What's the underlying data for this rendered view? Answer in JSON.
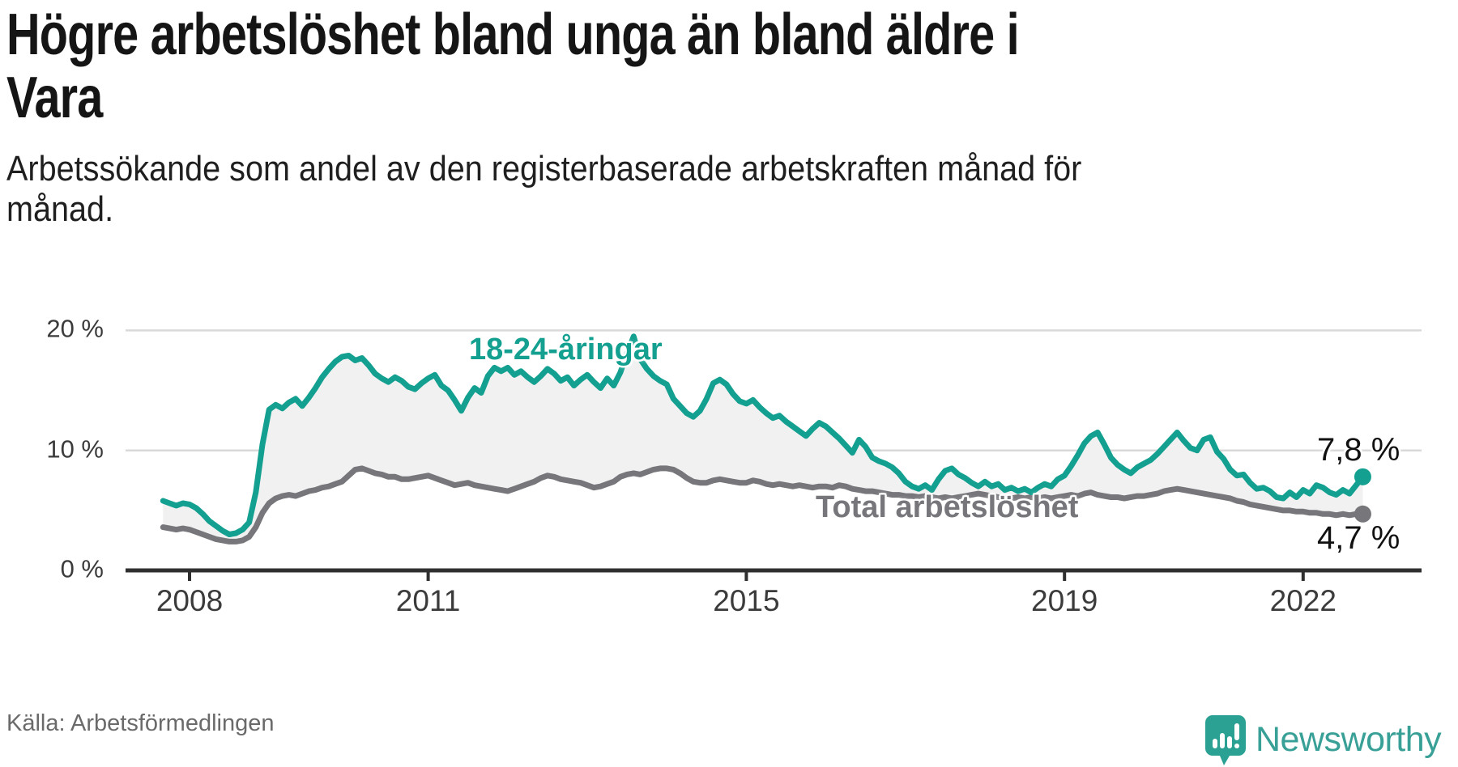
{
  "header": {
    "title_lines": [
      "Högre arbetslöshet bland unga än bland äldre i",
      "Vara"
    ],
    "subtitle_lines": [
      "Arbetssökande som andel av den registerbaserade arbetskraften månad för",
      "månad."
    ]
  },
  "footer": {
    "source": "Källa: Arbetsförmedlingen",
    "logo_text": "Newsworthy"
  },
  "chart_data": {
    "type": "line",
    "title": "Högre arbetslöshet bland unga än bland äldre i Vara",
    "subtitle": "Arbetssökande som andel av den registerbaserade arbetskraften månad för månad.",
    "unit": "%",
    "frequency": "monthly",
    "start_year": 2007,
    "start_month": 9,
    "end_year": 2022,
    "end_month": 10,
    "ylim": [
      0,
      22.3
    ],
    "grid": true,
    "legend_position": "inline-labels",
    "fill_between_color": "#f1f1f2",
    "axis_color": "#2f2f2f",
    "gridline_color": "#d9d9d9",
    "y_ticks": [
      {
        "value": 20,
        "label": "20 %"
      },
      {
        "value": 10,
        "label": "10 %"
      },
      {
        "value": 0,
        "label": "0 %"
      }
    ],
    "x_ticks": [
      {
        "year": 2008,
        "label": "2008"
      },
      {
        "year": 2011,
        "label": "2011"
      },
      {
        "year": 2015,
        "label": "2015"
      },
      {
        "year": 2019,
        "label": "2019"
      },
      {
        "year": 2022,
        "label": "2022"
      }
    ],
    "series": [
      {
        "name": "18-24-åringar",
        "color": "#14a090",
        "end_value": 7.8,
        "end_label": "7,8 %",
        "values": [
          5.8,
          5.6,
          5.4,
          5.6,
          5.5,
          5.2,
          4.7,
          4.1,
          3.7,
          3.3,
          3.0,
          3.1,
          3.4,
          4.0,
          6.5,
          10.5,
          13.4,
          13.8,
          13.5,
          14.0,
          14.3,
          13.7,
          14.4,
          15.2,
          16.1,
          16.8,
          17.4,
          17.8,
          17.9,
          17.5,
          17.7,
          17.1,
          16.4,
          16.0,
          15.7,
          16.1,
          15.8,
          15.3,
          15.1,
          15.6,
          16.0,
          16.3,
          15.4,
          15.0,
          14.2,
          13.3,
          14.4,
          15.2,
          14.8,
          16.2,
          16.9,
          16.6,
          16.9,
          16.3,
          16.6,
          16.1,
          15.7,
          16.2,
          16.8,
          16.4,
          15.8,
          16.1,
          15.4,
          15.9,
          16.3,
          15.7,
          15.2,
          16.0,
          15.4,
          16.5,
          18.1,
          19.5,
          17.6,
          16.8,
          16.2,
          15.8,
          15.5,
          14.3,
          13.7,
          13.1,
          12.8,
          13.3,
          14.3,
          15.6,
          15.9,
          15.5,
          14.7,
          14.1,
          13.9,
          14.2,
          13.6,
          13.1,
          12.7,
          12.9,
          12.4,
          12.0,
          11.6,
          11.2,
          11.8,
          12.3,
          12.0,
          11.5,
          11.0,
          10.4,
          9.8,
          10.9,
          10.3,
          9.4,
          9.1,
          8.9,
          8.6,
          8.1,
          7.4,
          7.0,
          6.8,
          7.1,
          6.7,
          7.6,
          8.3,
          8.5,
          8.0,
          7.7,
          7.3,
          7.0,
          7.4,
          7.0,
          7.2,
          6.7,
          6.9,
          6.6,
          6.8,
          6.5,
          6.9,
          7.2,
          7.0,
          7.6,
          7.9,
          8.7,
          9.6,
          10.6,
          11.2,
          11.5,
          10.5,
          9.4,
          8.8,
          8.4,
          8.1,
          8.6,
          8.9,
          9.2,
          9.7,
          10.3,
          10.9,
          11.5,
          10.8,
          10.2,
          10.0,
          10.9,
          11.1,
          9.9,
          9.3,
          8.4,
          7.9,
          8.0,
          7.3,
          6.8,
          6.9,
          6.6,
          6.1,
          6.0,
          6.5,
          6.1,
          6.7,
          6.4,
          7.1,
          6.9,
          6.5,
          6.3,
          6.7,
          6.4,
          7.1,
          7.8
        ]
      },
      {
        "name": "Total arbetslöshet",
        "color": "#76767b",
        "end_value": 4.7,
        "end_label": "4,7 %",
        "values": [
          3.6,
          3.5,
          3.4,
          3.5,
          3.4,
          3.2,
          3.0,
          2.8,
          2.6,
          2.5,
          2.4,
          2.4,
          2.5,
          2.8,
          3.6,
          4.8,
          5.6,
          6.0,
          6.2,
          6.3,
          6.2,
          6.4,
          6.6,
          6.7,
          6.9,
          7.0,
          7.2,
          7.4,
          7.9,
          8.4,
          8.5,
          8.3,
          8.1,
          8.0,
          7.8,
          7.8,
          7.6,
          7.6,
          7.7,
          7.8,
          7.9,
          7.7,
          7.5,
          7.3,
          7.1,
          7.2,
          7.3,
          7.1,
          7.0,
          6.9,
          6.8,
          6.7,
          6.6,
          6.8,
          7.0,
          7.2,
          7.4,
          7.7,
          7.9,
          7.8,
          7.6,
          7.5,
          7.4,
          7.3,
          7.1,
          6.9,
          7.0,
          7.2,
          7.4,
          7.8,
          8.0,
          8.1,
          8.0,
          8.2,
          8.4,
          8.5,
          8.5,
          8.4,
          8.1,
          7.7,
          7.4,
          7.3,
          7.3,
          7.5,
          7.6,
          7.5,
          7.4,
          7.3,
          7.3,
          7.5,
          7.4,
          7.2,
          7.1,
          7.2,
          7.1,
          7.0,
          7.1,
          7.0,
          6.9,
          7.0,
          7.0,
          6.9,
          7.1,
          7.0,
          6.8,
          6.7,
          6.6,
          6.6,
          6.5,
          6.4,
          6.3,
          6.3,
          6.2,
          6.2,
          6.1,
          6.2,
          6.1,
          6.0,
          6.1,
          6.0,
          6.1,
          6.2,
          6.3,
          6.4,
          6.3,
          6.2,
          6.1,
          6.0,
          6.0,
          6.1,
          6.0,
          6.1,
          6.0,
          6.1,
          6.0,
          6.1,
          6.2,
          6.3,
          6.2,
          6.4,
          6.5,
          6.3,
          6.2,
          6.1,
          6.1,
          6.0,
          6.1,
          6.2,
          6.2,
          6.3,
          6.4,
          6.6,
          6.7,
          6.8,
          6.7,
          6.6,
          6.5,
          6.4,
          6.3,
          6.2,
          6.1,
          6.0,
          5.8,
          5.7,
          5.5,
          5.4,
          5.3,
          5.2,
          5.1,
          5.0,
          5.0,
          4.9,
          4.9,
          4.8,
          4.8,
          4.7,
          4.7,
          4.6,
          4.7,
          4.6,
          4.7,
          4.7
        ]
      }
    ]
  }
}
